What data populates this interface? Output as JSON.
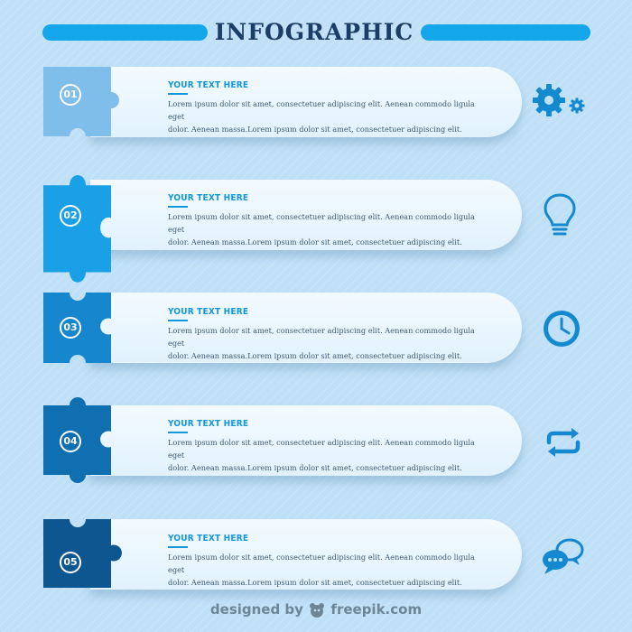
{
  "header": {
    "title": "INFOGRAPHIC"
  },
  "steps": [
    {
      "number": "01",
      "heading": "YOUR TEXT HERE",
      "line1": "Lorem ipsum dolor sit amet, consectetuer adipiscing elit. Aenean commodo ligula eget",
      "line2": "dolor. Aenean massa.Lorem ipsum dolor sit amet, consectetuer adipiscing elit.",
      "icon": "gears-icon",
      "color": "#7fbdea"
    },
    {
      "number": "02",
      "heading": "YOUR TEXT HERE",
      "line1": "Lorem ipsum dolor sit amet, consectetuer adipiscing elit. Aenean commodo ligula eget",
      "line2": "dolor. Aenean massa.Lorem ipsum dolor sit amet, consectetuer adipiscing elit.",
      "icon": "lightbulb-icon",
      "color": "#1aa0e6"
    },
    {
      "number": "03",
      "heading": "YOUR TEXT HERE",
      "line1": "Lorem ipsum dolor sit amet, consectetuer adipiscing elit. Aenean commodo ligula eget",
      "line2": "dolor. Aenean massa.Lorem ipsum dolor sit amet, consectetuer adipiscing elit.",
      "icon": "clock-icon",
      "color": "#1687cf"
    },
    {
      "number": "04",
      "heading": "YOUR TEXT HERE",
      "line1": "Lorem ipsum dolor sit amet, consectetuer adipiscing elit. Aenean commodo ligula eget",
      "line2": "dolor. Aenean massa.Lorem ipsum dolor sit amet, consectetuer adipiscing elit.",
      "icon": "refresh-icon",
      "color": "#0f6fb0"
    },
    {
      "number": "05",
      "heading": "YOUR TEXT HERE",
      "line1": "Lorem ipsum dolor sit amet, consectetuer adipiscing elit. Aenean commodo ligula eget",
      "line2": "dolor. Aenean massa.Lorem ipsum dolor sit amet, consectetuer adipiscing elit.",
      "icon": "chat-bubbles-icon",
      "color": "#0d5690"
    }
  ],
  "footer": {
    "prefix": "designed by",
    "brand": "freepik.com"
  },
  "colors": {
    "accent": "#13a6ea",
    "title": "#1a3e66",
    "heading": "#1497d8",
    "icon": "#1489cf"
  }
}
